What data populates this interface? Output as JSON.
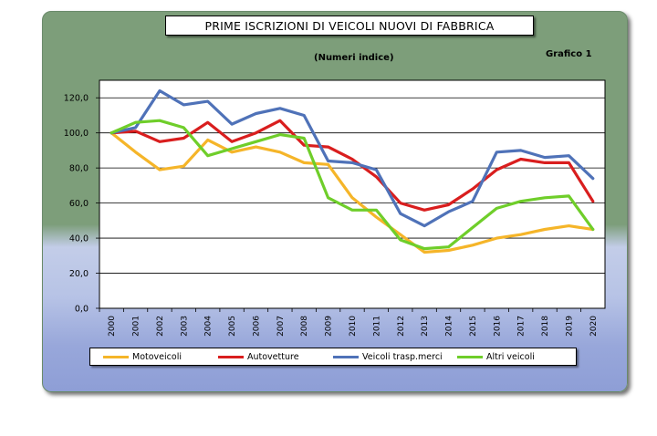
{
  "title": "PRIME ISCRIZIONI DI VEICOLI NUOVI DI FABBRICA",
  "subtitle": "(Numeri indice)",
  "graph_label": "Grafico 1",
  "colors": {
    "motoveicoli": "#f5b529",
    "autovetture": "#d91e1e",
    "veicoli_trasp_merci": "#4f72b8",
    "altri_veicoli": "#6fce2a"
  },
  "chart_data": {
    "type": "line",
    "title": "PRIME ISCRIZIONI DI VEICOLI NUOVI DI FABBRICA",
    "subtitle": "(Numeri indice)",
    "x": [
      "2000",
      "2001",
      "2002",
      "2003",
      "2004",
      "2005",
      "2006",
      "2007",
      "2008",
      "2009",
      "2010",
      "2011",
      "2012",
      "2013",
      "2014",
      "2015",
      "2016",
      "2017",
      "2018",
      "2019",
      "2020"
    ],
    "ylim": [
      0,
      130
    ],
    "yticks": [
      "0,0",
      "20,0",
      "40,0",
      "60,0",
      "80,0",
      "100,0",
      "120,0"
    ],
    "ytick_values": [
      0,
      20,
      40,
      60,
      80,
      100,
      120
    ],
    "grid": true,
    "legend_position": "bottom",
    "series": [
      {
        "name": "Motoveicoli",
        "color": "#f5b529",
        "values": [
          100,
          89,
          79,
          81,
          96,
          89,
          92,
          89,
          83,
          82,
          63,
          52,
          42,
          32,
          33,
          36,
          40,
          42,
          45,
          47,
          45
        ]
      },
      {
        "name": "Autovetture",
        "color": "#d91e1e",
        "values": [
          100,
          101,
          95,
          97,
          106,
          95,
          100,
          107,
          93,
          92,
          85,
          75,
          60,
          56,
          59,
          68,
          79,
          85,
          83,
          83,
          61
        ]
      },
      {
        "name": "Veicoli trasp.merci",
        "color": "#4f72b8",
        "values": [
          100,
          103,
          124,
          116,
          118,
          105,
          111,
          114,
          110,
          84,
          83,
          79,
          54,
          47,
          55,
          61,
          89,
          90,
          86,
          87,
          74
        ]
      },
      {
        "name": "Altri veicoli",
        "color": "#6fce2a",
        "values": [
          100,
          106,
          107,
          103,
          87,
          91,
          95,
          99,
          97,
          63,
          56,
          56,
          39,
          34,
          35,
          46,
          57,
          61,
          63,
          64,
          45
        ]
      }
    ]
  }
}
